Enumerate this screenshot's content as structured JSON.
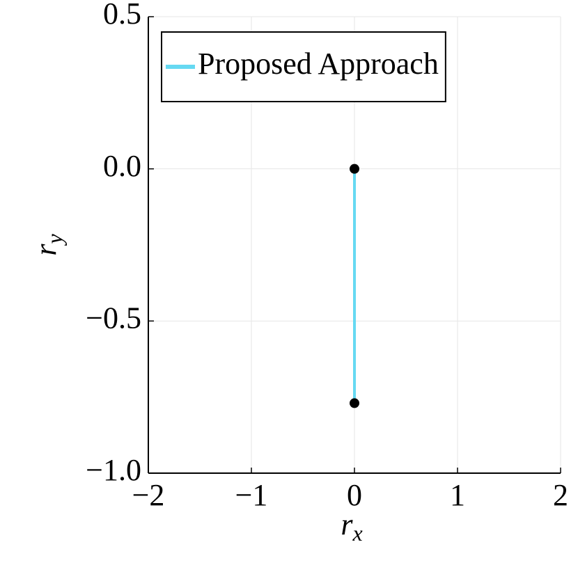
{
  "chart_data": {
    "type": "line",
    "xlabel": [
      "r",
      "x"
    ],
    "ylabel": [
      "r",
      "y"
    ],
    "series": [
      {
        "name": "Proposed Approach",
        "color": "#66d9f2",
        "x": [
          0,
          0
        ],
        "values": [
          0,
          -0.77
        ]
      }
    ],
    "markers": {
      "color": "#000000",
      "x": [
        0,
        0
      ],
      "values": [
        0,
        -0.77
      ]
    },
    "xlim": [
      -2,
      2
    ],
    "ylim": [
      -1.0,
      0.5
    ],
    "xticks": [
      {
        "value": -2,
        "label": "−2"
      },
      {
        "value": -1,
        "label": "−1"
      },
      0,
      1,
      2
    ],
    "yticks": [
      {
        "value": -1.0,
        "label": "−1.0"
      },
      {
        "value": -0.5,
        "label": "−0.5"
      },
      {
        "value": 0.0,
        "label": "0.0"
      },
      0.5
    ],
    "grid": true,
    "legend": "top-left"
  }
}
